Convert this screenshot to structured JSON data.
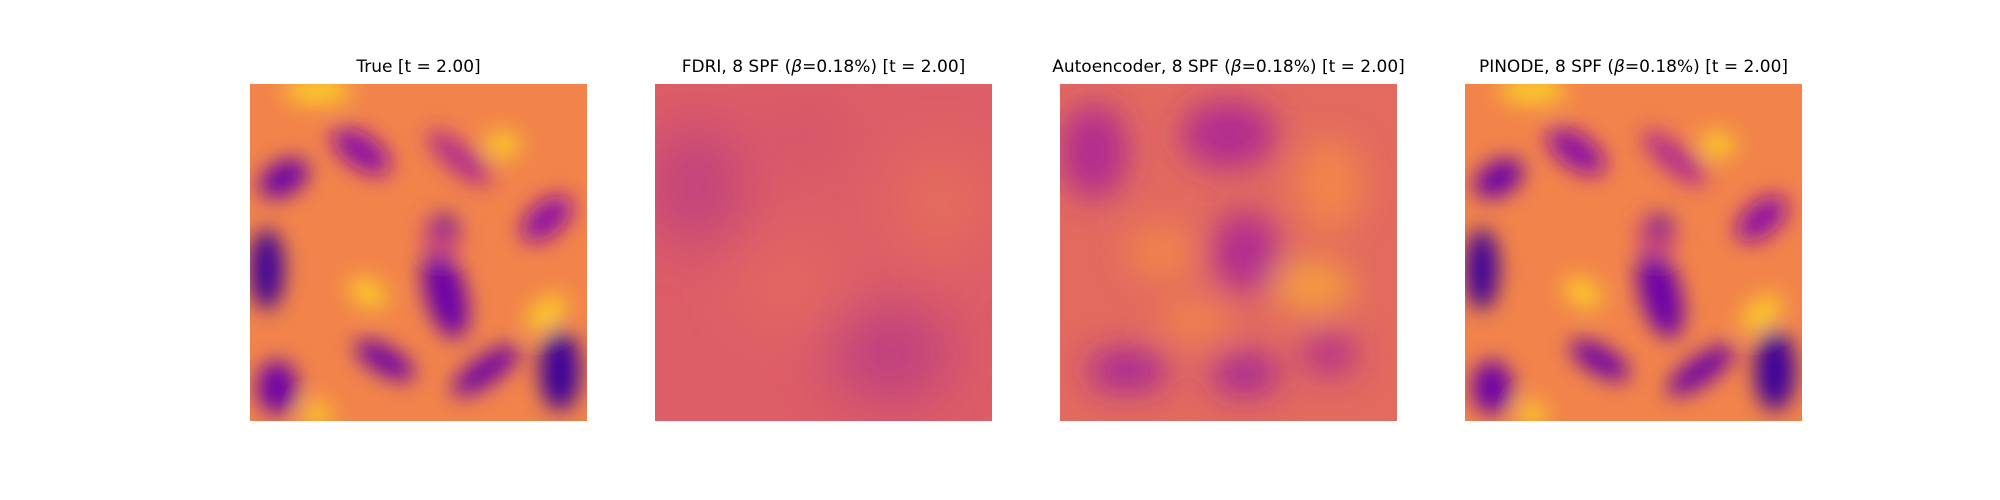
{
  "figure": {
    "panels": [
      {
        "title_prefix": "True",
        "title_beta": "",
        "title_suffix": "[t = 2.00]",
        "field": "field-true"
      },
      {
        "title_prefix": "FDRI, 8 SPF (",
        "title_beta": "β",
        "title_suffix": "=0.18%) [t = 2.00]",
        "field": "field-fdri"
      },
      {
        "title_prefix": "Autoencoder, 8 SPF (",
        "title_beta": "β",
        "title_suffix": "=0.18%) [t = 2.00]",
        "field": "field-autoencoder"
      },
      {
        "title_prefix": "PINODE, 8 SPF (",
        "title_beta": "β",
        "title_suffix": "=0.18%) [t = 2.00]",
        "field": "field-pinode"
      }
    ],
    "colormap": {
      "name": "plasma",
      "colors": [
        "#3a049a",
        "#6a00a8",
        "#8f0da4",
        "#b12a90",
        "#cc4778",
        "#e16462",
        "#f2844b",
        "#fca636",
        "#fcce25",
        "#f0f921"
      ]
    }
  }
}
